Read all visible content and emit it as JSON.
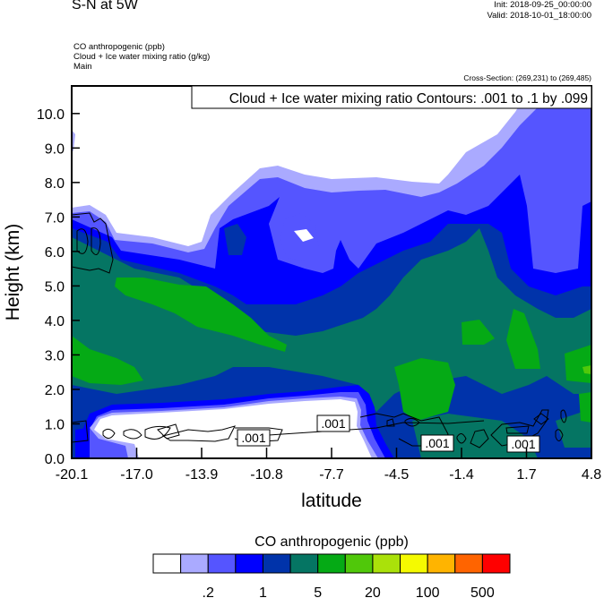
{
  "header": {
    "title": "S-N at 5W",
    "init": "Init: 2018-09-25_00:00:00",
    "valid": "Valid: 2018-10-01_18:00:00",
    "fields": [
      "CO anthropogenic   (ppb)",
      "Cloud + Ice water mixing ratio   (g/kg)",
      "Main"
    ],
    "cross_section": "Cross-Section: (269,231) to (269,485)"
  },
  "chart_data": {
    "type": "heatmap",
    "subtype": "filled contour with line contour overlay",
    "contour_legend": "Cloud + Ice water mixing ratio Contours: .001 to .1 by .099",
    "xlabel": "latitude",
    "ylabel": "Height (km)",
    "xlim": [
      -20.1,
      4.8
    ],
    "ylim": [
      0,
      10.8
    ],
    "xticks": [
      "-20.1",
      "-17.0",
      "-13.9",
      "-10.8",
      "-7.7",
      "-4.5",
      "-1.4",
      "1.7",
      "4.8"
    ],
    "yticks": [
      "0.0",
      "1.0",
      "2.0",
      "3.0",
      "4.0",
      "5.0",
      "6.0",
      "7.0",
      "8.0",
      "9.0",
      "10.0"
    ],
    "contour_labels": [
      ".001",
      ".001",
      ".001",
      ".001"
    ],
    "colorbar": {
      "title": "CO anthropogenic  (ppb)",
      "labels": [
        ".2",
        "1",
        "5",
        "20",
        "100",
        "500"
      ],
      "colors": [
        "#FFFFFF",
        "#AAAAFF",
        "#5555FF",
        "#0000FF",
        "#0033AA",
        "#057563",
        "#05AA15",
        "#50C80A",
        "#AAE10A",
        "#F5FA00",
        "#FFB400",
        "#FF6400",
        "#FF0000"
      ]
    }
  }
}
